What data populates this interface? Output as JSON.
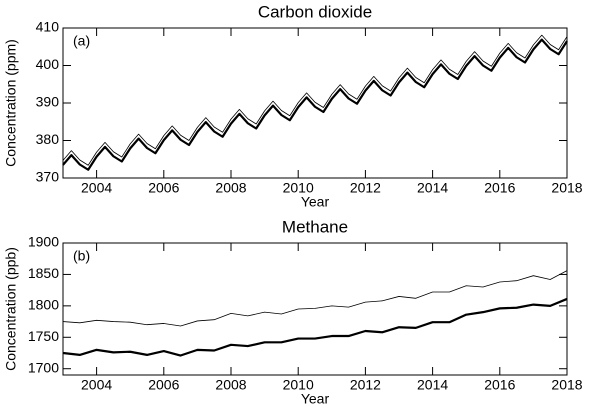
{
  "chart_data": [
    {
      "type": "line",
      "title": "Carbon dioxide",
      "annotation": "(a)",
      "xlabel": "Year",
      "ylabel": "Concentration (ppm)",
      "x": [
        2003,
        2003.25,
        2003.5,
        2003.75,
        2004,
        2004.25,
        2004.5,
        2004.75,
        2005,
        2005.25,
        2005.5,
        2005.75,
        2006,
        2006.25,
        2006.5,
        2006.75,
        2007,
        2007.25,
        2007.5,
        2007.75,
        2008,
        2008.25,
        2008.5,
        2008.75,
        2009,
        2009.25,
        2009.5,
        2009.75,
        2010,
        2010.25,
        2010.5,
        2010.75,
        2011,
        2011.25,
        2011.5,
        2011.75,
        2012,
        2012.25,
        2012.5,
        2012.75,
        2013,
        2013.25,
        2013.5,
        2013.75,
        2014,
        2014.25,
        2014.5,
        2014.75,
        2015,
        2015.25,
        2015.5,
        2015.75,
        2016,
        2016.25,
        2016.5,
        2016.75,
        2017,
        2017.25,
        2017.5,
        2017.75,
        2018
      ],
      "series": [
        {
          "color": "#000000",
          "linewidth": 0.8,
          "values": [
            374.7,
            377.3,
            374.8,
            373.4,
            376.9,
            379.5,
            377.0,
            375.6,
            379.1,
            381.7,
            379.2,
            377.8,
            381.3,
            383.9,
            381.4,
            380.0,
            383.5,
            386.1,
            383.6,
            382.2,
            385.7,
            388.3,
            385.8,
            384.4,
            387.9,
            390.5,
            388.0,
            386.6,
            390.1,
            392.7,
            390.2,
            388.8,
            392.3,
            394.9,
            392.4,
            391.0,
            394.5,
            397.1,
            394.6,
            393.2,
            396.7,
            399.3,
            396.8,
            395.4,
            398.9,
            401.5,
            399.0,
            397.6,
            401.1,
            403.7,
            401.2,
            399.8,
            403.3,
            405.9,
            403.4,
            402.0,
            405.5,
            408.1,
            405.6,
            404.2,
            407.7
          ]
        },
        {
          "color": "#000000",
          "linewidth": 2.2,
          "values": [
            373.5,
            376.1,
            373.6,
            372.2,
            375.7,
            378.3,
            375.8,
            374.4,
            377.9,
            380.5,
            378.0,
            376.6,
            380.1,
            382.7,
            380.2,
            378.8,
            382.3,
            384.9,
            382.4,
            381.0,
            384.5,
            387.1,
            384.6,
            383.2,
            386.7,
            389.3,
            386.8,
            385.4,
            388.9,
            391.5,
            389.0,
            387.6,
            391.1,
            393.7,
            391.2,
            389.8,
            393.3,
            395.9,
            393.4,
            392.0,
            395.5,
            398.1,
            395.6,
            394.2,
            397.7,
            400.3,
            397.8,
            396.4,
            399.9,
            402.5,
            400.0,
            398.6,
            402.1,
            404.7,
            402.2,
            400.8,
            404.3,
            406.9,
            404.4,
            403.0,
            406.5
          ]
        }
      ],
      "xlim": [
        2003,
        2018
      ],
      "ylim": [
        370,
        410
      ],
      "xticks": [
        2004,
        2006,
        2008,
        2010,
        2012,
        2014,
        2016,
        2018
      ],
      "yticks": [
        370,
        380,
        390,
        400,
        410
      ]
    },
    {
      "type": "line",
      "title": "Methane",
      "annotation": "(b)",
      "xlabel": "Year",
      "ylabel": "Concentration (ppb)",
      "x": [
        2003,
        2003.5,
        2004,
        2004.5,
        2005,
        2005.5,
        2006,
        2006.5,
        2007,
        2007.5,
        2008,
        2008.5,
        2009,
        2009.5,
        2010,
        2010.5,
        2011,
        2011.5,
        2012,
        2012.5,
        2013,
        2013.5,
        2014,
        2014.5,
        2015,
        2015.5,
        2016,
        2016.5,
        2017,
        2017.5,
        2018
      ],
      "series": [
        {
          "color": "#000000",
          "linewidth": 0.8,
          "values": [
            1775,
            1773,
            1777,
            1775,
            1774,
            1770,
            1772,
            1768,
            1776,
            1778,
            1788,
            1784,
            1790,
            1787,
            1795,
            1796,
            1800,
            1798,
            1806,
            1808,
            1815,
            1812,
            1822,
            1822,
            1832,
            1830,
            1838,
            1840,
            1848,
            1842,
            1856
          ]
        },
        {
          "color": "#000000",
          "linewidth": 2.2,
          "values": [
            1725,
            1722,
            1730,
            1726,
            1727,
            1722,
            1728,
            1721,
            1730,
            1729,
            1738,
            1736,
            1742,
            1742,
            1748,
            1748,
            1752,
            1752,
            1760,
            1758,
            1766,
            1765,
            1774,
            1774,
            1786,
            1790,
            1796,
            1797,
            1802,
            1800,
            1811
          ]
        }
      ],
      "xlim": [
        2003,
        2018
      ],
      "ylim": [
        1690,
        1900
      ],
      "xticks": [
        2004,
        2006,
        2008,
        2010,
        2012,
        2014,
        2016,
        2018
      ],
      "yticks": [
        1700,
        1750,
        1800,
        1850,
        1900
      ]
    }
  ]
}
